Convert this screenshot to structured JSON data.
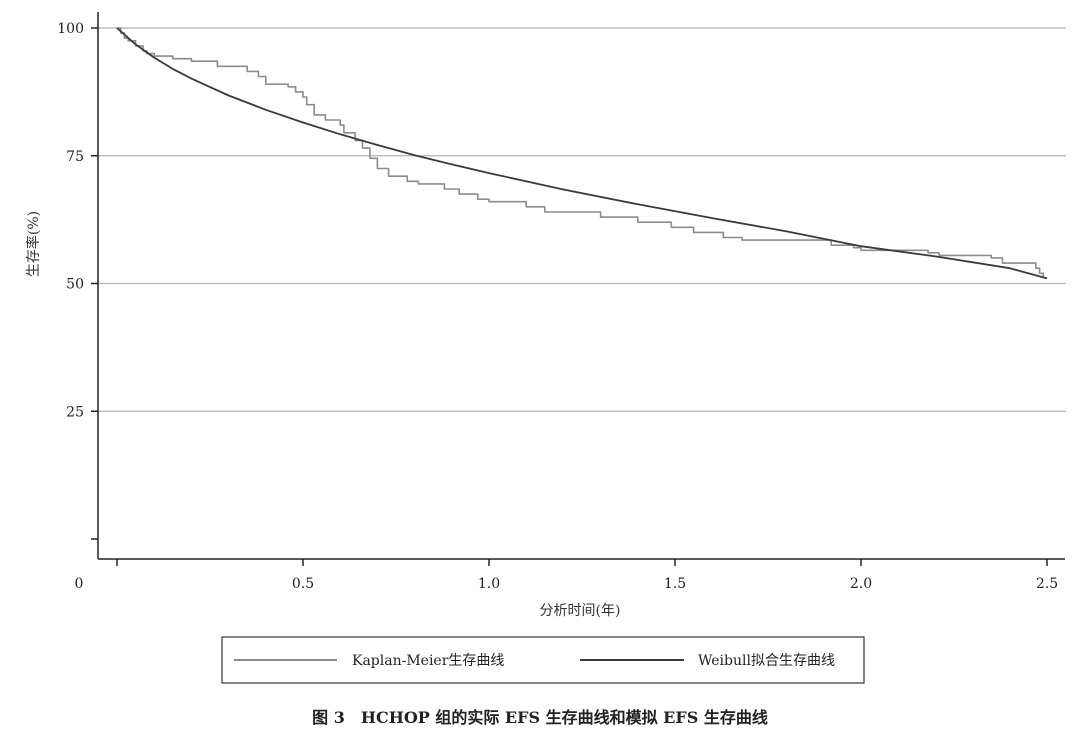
{
  "chart_data": {
    "type": "line",
    "ylabel": "生存率(%)",
    "xlabel": "分析时间(年)",
    "xlim": [
      0,
      2.5
    ],
    "ylim": [
      0,
      100
    ],
    "x_ticks": [
      {
        "value": 0,
        "label": "0"
      },
      {
        "value": 0.5,
        "label": "0.5"
      },
      {
        "value": 1.0,
        "label": "1.0"
      },
      {
        "value": 1.5,
        "label": "1.5"
      },
      {
        "value": 2.0,
        "label": "2.0"
      },
      {
        "value": 2.5,
        "label": "2.5"
      }
    ],
    "y_ticks": [
      {
        "value": 0,
        "label": ""
      },
      {
        "value": 25,
        "label": "25"
      },
      {
        "value": 50,
        "label": "50"
      },
      {
        "value": 75,
        "label": "75"
      },
      {
        "value": 100,
        "label": "100"
      }
    ],
    "grid": "horizontal",
    "legend_position": "bottom",
    "series": [
      {
        "name": "Kaplan-Meier生存曲线",
        "style": "step",
        "color": "#8c8c8c",
        "points": [
          [
            0.0,
            100
          ],
          [
            0.01,
            99
          ],
          [
            0.02,
            98
          ],
          [
            0.03,
            97.5
          ],
          [
            0.05,
            96.5
          ],
          [
            0.07,
            95.5
          ],
          [
            0.08,
            95
          ],
          [
            0.1,
            94.5
          ],
          [
            0.15,
            94
          ],
          [
            0.2,
            93.5
          ],
          [
            0.27,
            92.5
          ],
          [
            0.35,
            91.5
          ],
          [
            0.38,
            90.5
          ],
          [
            0.4,
            89
          ],
          [
            0.46,
            88.5
          ],
          [
            0.48,
            87.5
          ],
          [
            0.5,
            86.5
          ],
          [
            0.51,
            85
          ],
          [
            0.53,
            83
          ],
          [
            0.56,
            82
          ],
          [
            0.6,
            81
          ],
          [
            0.61,
            79.5
          ],
          [
            0.64,
            78
          ],
          [
            0.66,
            76.5
          ],
          [
            0.68,
            74.5
          ],
          [
            0.7,
            72.5
          ],
          [
            0.73,
            71
          ],
          [
            0.78,
            70
          ],
          [
            0.81,
            69.5
          ],
          [
            0.88,
            68.5
          ],
          [
            0.92,
            67.5
          ],
          [
            0.97,
            66.5
          ],
          [
            1.0,
            66
          ],
          [
            1.1,
            65
          ],
          [
            1.15,
            64
          ],
          [
            1.3,
            63
          ],
          [
            1.4,
            62
          ],
          [
            1.49,
            61
          ],
          [
            1.55,
            60
          ],
          [
            1.63,
            59
          ],
          [
            1.68,
            58.5
          ],
          [
            1.85,
            58.5
          ],
          [
            1.92,
            57.5
          ],
          [
            1.98,
            57
          ],
          [
            2.0,
            56.5
          ],
          [
            2.18,
            56
          ],
          [
            2.21,
            55.5
          ],
          [
            2.35,
            55
          ],
          [
            2.38,
            54
          ],
          [
            2.47,
            53
          ],
          [
            2.48,
            52
          ],
          [
            2.49,
            51
          ]
        ]
      },
      {
        "name": "Weibull拟合生存曲线",
        "style": "smooth",
        "color": "#3a3a3a",
        "points": [
          [
            0.0,
            100
          ],
          [
            0.05,
            96.8
          ],
          [
            0.1,
            94.2
          ],
          [
            0.15,
            92
          ],
          [
            0.2,
            90.1
          ],
          [
            0.3,
            86.8
          ],
          [
            0.4,
            84
          ],
          [
            0.5,
            81.5
          ],
          [
            0.6,
            79.2
          ],
          [
            0.7,
            77.1
          ],
          [
            0.8,
            75.1
          ],
          [
            0.9,
            73.3
          ],
          [
            1.0,
            71.6
          ],
          [
            1.2,
            68.4
          ],
          [
            1.4,
            65.5
          ],
          [
            1.6,
            62.8
          ],
          [
            1.8,
            60.2
          ],
          [
            2.0,
            57.3
          ],
          [
            2.2,
            55.3
          ],
          [
            2.4,
            53
          ],
          [
            2.5,
            51
          ]
        ]
      }
    ]
  },
  "caption": "图 3　HCHOP 组的实际 EFS 生存曲线和模拟 EFS 生存曲线"
}
